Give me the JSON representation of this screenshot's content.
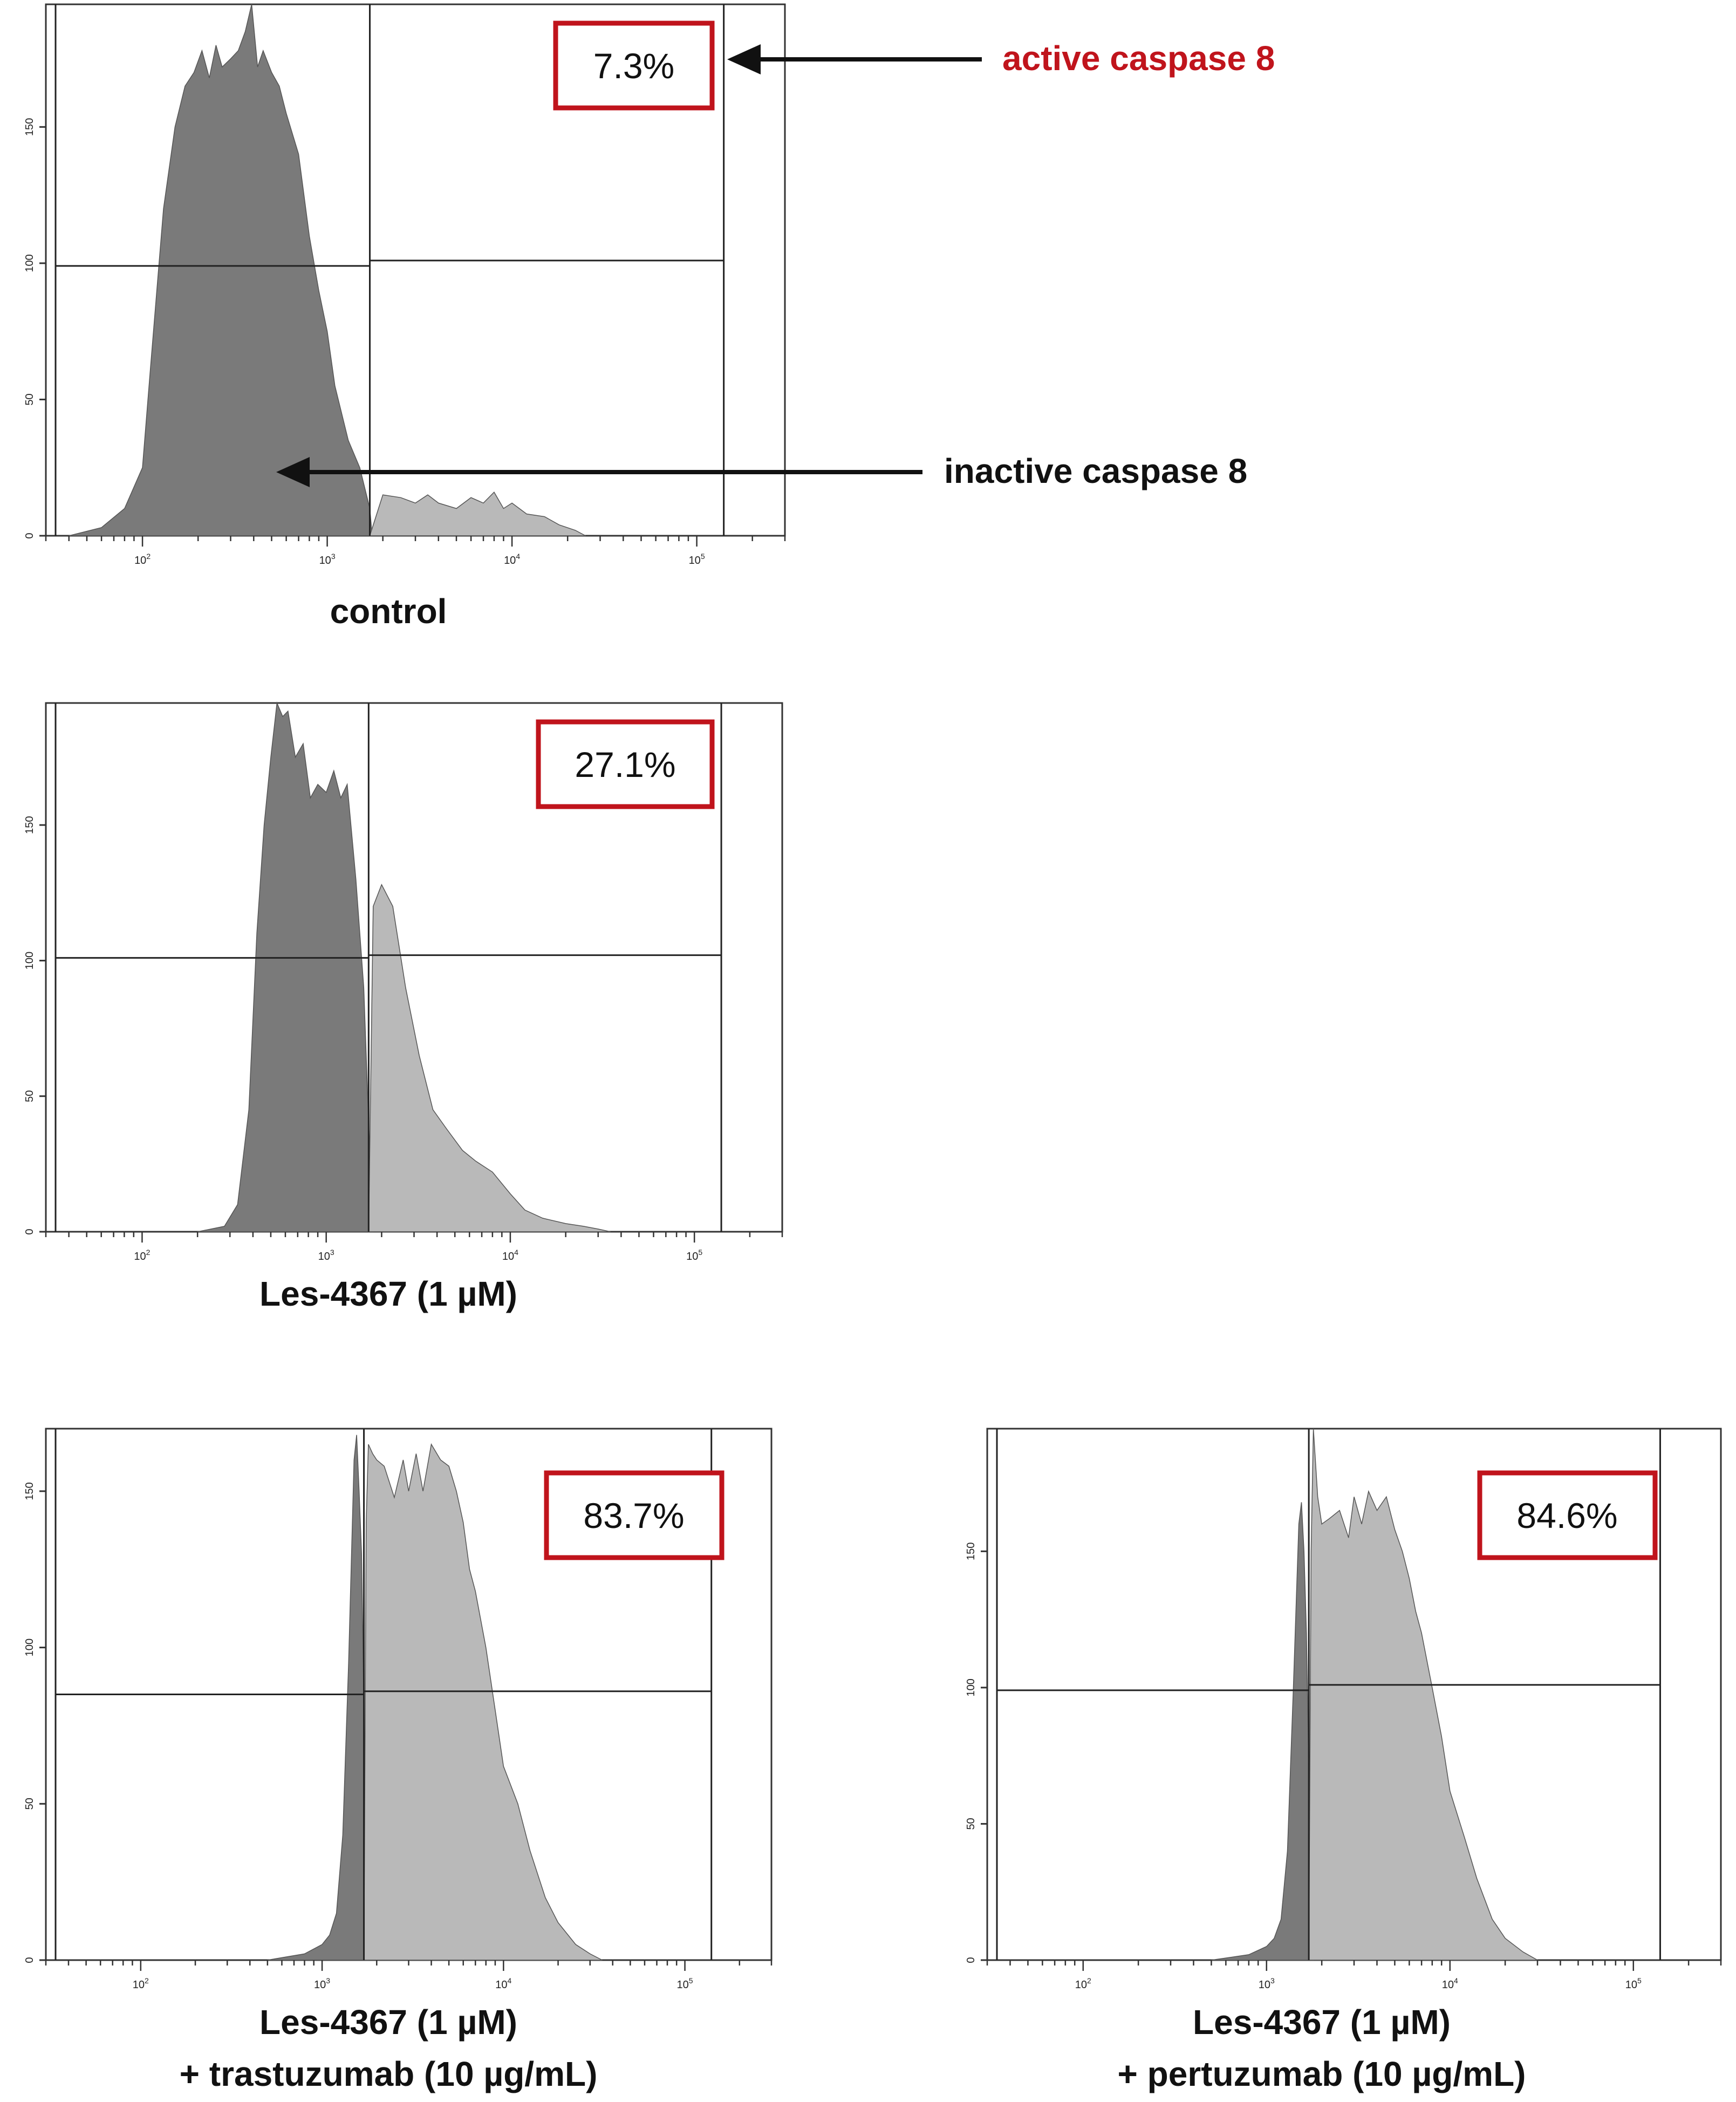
{
  "colors": {
    "inactive_fill": "#7a7a7a",
    "active_fill": "#b9b9b9",
    "box_border": "#c0141c",
    "annotation_red": "#c0141c",
    "annotation_black": "#111111"
  },
  "annotations": {
    "active_label": "active caspase 8",
    "inactive_label": "inactive caspase 8"
  },
  "chart_data": [
    {
      "type": "area",
      "caption_lines": [
        "control"
      ],
      "percentage": "7.3%",
      "x_scale": "log",
      "x_ticks": [
        100,
        1000,
        10000,
        100000
      ],
      "y_ticks": [
        0,
        50,
        100,
        150
      ],
      "ylim": [
        0,
        195
      ],
      "gate_x": 1700,
      "gate_end_x": 140000,
      "left_level": 99,
      "right_level": 101,
      "series": [
        {
          "color": "#7a7a7a",
          "x": [
            40,
            60,
            80,
            100,
            110,
            130,
            150,
            170,
            190,
            210,
            230,
            250,
            270,
            300,
            330,
            360,
            390,
            420,
            450,
            500,
            550,
            600,
            700,
            800,
            900,
            1000,
            1100,
            1300,
            1500,
            1700,
            1750
          ],
          "y": [
            0,
            3,
            10,
            25,
            60,
            120,
            150,
            165,
            170,
            178,
            168,
            180,
            172,
            175,
            178,
            185,
            195,
            172,
            178,
            170,
            165,
            155,
            140,
            110,
            90,
            75,
            55,
            35,
            25,
            10,
            0
          ]
        },
        {
          "color": "#b9b9b9",
          "x": [
            1700,
            2000,
            2500,
            3000,
            3500,
            4000,
            5000,
            6000,
            7000,
            8000,
            9000,
            10000,
            12000,
            15000,
            18000,
            22000,
            25000
          ],
          "y": [
            0,
            15,
            14,
            12,
            15,
            12,
            10,
            14,
            12,
            16,
            10,
            12,
            8,
            7,
            4,
            2,
            0
          ]
        }
      ]
    },
    {
      "type": "area",
      "caption_lines": [
        "Les-4367 (1 µM)"
      ],
      "percentage": "27.1%",
      "x_scale": "log",
      "x_ticks": [
        100,
        1000,
        10000,
        100000
      ],
      "y_ticks": [
        0,
        50,
        100,
        150
      ],
      "ylim": [
        0,
        195
      ],
      "gate_x": 1700,
      "gate_end_x": 140000,
      "left_level": 101,
      "right_level": 102,
      "series": [
        {
          "color": "#7a7a7a",
          "x": [
            200,
            280,
            330,
            380,
            420,
            460,
            500,
            540,
            580,
            620,
            680,
            750,
            820,
            900,
            1000,
            1100,
            1200,
            1300,
            1450,
            1600,
            1700,
            1800
          ],
          "y": [
            0,
            2,
            10,
            45,
            110,
            150,
            175,
            195,
            190,
            192,
            175,
            180,
            160,
            165,
            162,
            170,
            160,
            165,
            130,
            90,
            40,
            0
          ]
        },
        {
          "color": "#b9b9b9",
          "x": [
            1700,
            1800,
            2000,
            2300,
            2700,
            3200,
            3800,
            4500,
            5500,
            6500,
            8000,
            10000,
            12000,
            15000,
            20000,
            25000,
            30000,
            35000
          ],
          "y": [
            0,
            120,
            128,
            120,
            90,
            65,
            45,
            38,
            30,
            26,
            22,
            14,
            8,
            5,
            3,
            2,
            1,
            0
          ]
        }
      ]
    },
    {
      "type": "area",
      "caption_lines": [
        "Les-4367 (1 µM)",
        "+ trastuzumab (10 µg/mL)"
      ],
      "percentage": "83.7%",
      "x_scale": "log",
      "x_ticks": [
        100,
        1000,
        10000,
        100000
      ],
      "y_ticks": [
        0,
        50,
        100,
        150
      ],
      "ylim": [
        0,
        170
      ],
      "gate_x": 1700,
      "gate_end_x": 140000,
      "left_level": 85,
      "right_level": 86,
      "series": [
        {
          "color": "#7a7a7a",
          "x": [
            500,
            800,
            1000,
            1100,
            1200,
            1300,
            1400,
            1500,
            1550,
            1600,
            1650,
            1700,
            1800
          ],
          "y": [
            0,
            2,
            5,
            8,
            15,
            40,
            95,
            160,
            168,
            150,
            130,
            80,
            0
          ]
        },
        {
          "color": "#b9b9b9",
          "x": [
            1700,
            1750,
            1800,
            1900,
            2000,
            2200,
            2500,
            2800,
            3000,
            3300,
            3600,
            4000,
            4500,
            5000,
            5500,
            6000,
            6500,
            7000,
            8000,
            9000,
            10000,
            12000,
            14000,
            17000,
            20000,
            25000,
            30000,
            35000
          ],
          "y": [
            0,
            140,
            165,
            162,
            160,
            158,
            148,
            160,
            150,
            162,
            150,
            165,
            160,
            158,
            150,
            140,
            125,
            118,
            100,
            80,
            62,
            50,
            35,
            20,
            12,
            5,
            2,
            0
          ]
        }
      ]
    },
    {
      "type": "area",
      "caption_lines": [
        "Les-4367 (1 µM)",
        "+ pertuzumab (10 µg/mL)"
      ],
      "percentage": "84.6%",
      "x_scale": "log",
      "x_ticks": [
        100,
        1000,
        10000,
        100000
      ],
      "y_ticks": [
        0,
        50,
        100,
        150
      ],
      "ylim": [
        0,
        195
      ],
      "gate_x": 1700,
      "gate_end_x": 140000,
      "left_level": 99,
      "right_level": 101,
      "series": [
        {
          "color": "#7a7a7a",
          "x": [
            500,
            800,
            1000,
            1100,
            1200,
            1300,
            1400,
            1500,
            1550,
            1600,
            1650,
            1700,
            1800
          ],
          "y": [
            0,
            2,
            5,
            8,
            15,
            40,
            100,
            160,
            168,
            150,
            120,
            70,
            0
          ]
        },
        {
          "color": "#b9b9b9",
          "x": [
            1700,
            1750,
            1800,
            1900,
            2000,
            2200,
            2500,
            2800,
            3000,
            3300,
            3600,
            4000,
            4500,
            5000,
            5500,
            6000,
            6500,
            7000,
            8000,
            9000,
            10000,
            12000,
            14000,
            17000,
            20000,
            25000,
            30000
          ],
          "y": [
            0,
            150,
            195,
            170,
            160,
            162,
            165,
            155,
            170,
            160,
            172,
            165,
            170,
            158,
            150,
            140,
            128,
            120,
            100,
            82,
            62,
            45,
            30,
            15,
            8,
            3,
            0
          ]
        }
      ]
    }
  ]
}
